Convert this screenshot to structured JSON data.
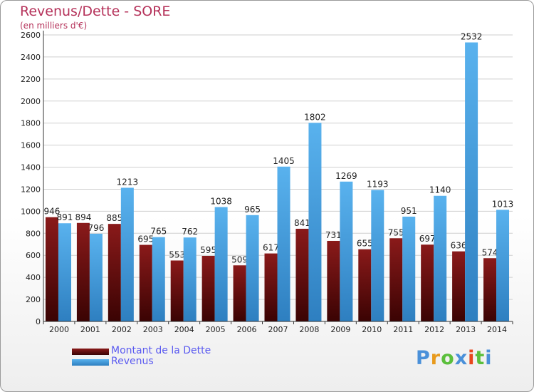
{
  "header": {
    "title": "Revenus/Dette - SORE",
    "subtitle": "(en milliers d'€)"
  },
  "legend": {
    "debt": "Montant de la Dette",
    "revenue": "Revenus"
  },
  "logo": {
    "text": "Proxiti",
    "letters": [
      "P",
      "r",
      "o",
      "x",
      "i",
      "t",
      "i"
    ]
  },
  "colors": {
    "debt_top": "#8a1a1a",
    "debt_bottom": "#3a0303",
    "revenue_top": "#59b2ee",
    "revenue_bottom": "#2e7fc0",
    "logo": [
      "#4a90d9",
      "#e89a1c",
      "#5bbf3c",
      "#4a90d9",
      "#e8461c",
      "#5bbf3c",
      "#4a90d9"
    ]
  },
  "chart_data": {
    "type": "bar",
    "title": "Revenus/Dette - SORE",
    "ylabel": "(en milliers d'€)",
    "ylim": [
      0,
      2600
    ],
    "yticks": [
      0,
      200,
      400,
      600,
      800,
      1000,
      1200,
      1400,
      1600,
      1800,
      2000,
      2200,
      2400,
      2600
    ],
    "categories": [
      "2000",
      "2001",
      "2002",
      "2003",
      "2004",
      "2005",
      "2006",
      "2007",
      "2008",
      "2009",
      "2010",
      "2011",
      "2012",
      "2013",
      "2014"
    ],
    "series": [
      {
        "name": "Montant de la Dette",
        "values": [
          946,
          894,
          885,
          695,
          553,
          595,
          509,
          617,
          841,
          731,
          655,
          755,
          697,
          636,
          574
        ]
      },
      {
        "name": "Revenus",
        "values": [
          891,
          796,
          1213,
          765,
          762,
          1038,
          965,
          1405,
          1802,
          1269,
          1193,
          951,
          1140,
          2532,
          1013
        ]
      }
    ],
    "legend_position": "bottom-left",
    "grid": true
  }
}
